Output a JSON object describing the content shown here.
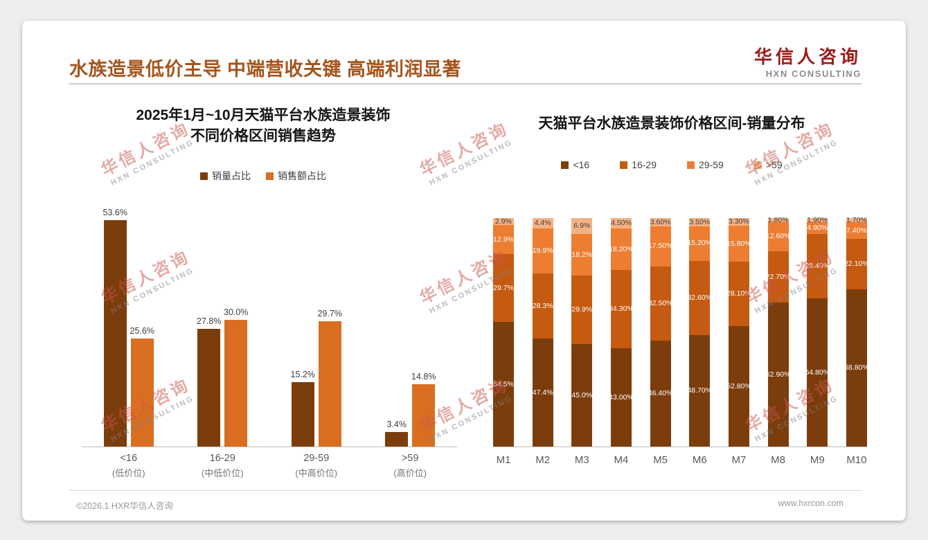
{
  "page": {
    "title": "水族造景低价主导 中端营收关键 高端利润显著",
    "logo": {
      "cn": "华信人咨询",
      "en": "HXN CONSULTING"
    },
    "watermark": {
      "cn": "华信人咨询",
      "en": "HXN CONSULTING"
    },
    "footer": {
      "copyright": "©2026.1 HXR华信人咨询",
      "website": "www.hxrcon.com"
    }
  },
  "colors": {
    "page_title": "#A4551C",
    "logo_red": "#9C1B1C",
    "dark_brown": "#7C3D0D",
    "orange": "#DA6E20",
    "stack_16_29": "#C55A11",
    "stack_29_59": "#ED7D31",
    "stack_gt59": "#F4B183"
  },
  "chart_data": [
    {
      "type": "bar",
      "title_lines": [
        "2025年1月~10月天猫平台水族造景装饰",
        "不同价格区间销售趋势"
      ],
      "categories": [
        "<16",
        "16-29",
        "29-59",
        ">59"
      ],
      "category_sublabels": [
        "(低价位)",
        "(中低价位)",
        "(中高价位)",
        "(高价位)"
      ],
      "series": [
        {
          "name": "销量占比",
          "color": "#7C3D0D",
          "values": [
            53.6,
            27.8,
            15.2,
            3.4
          ],
          "labels": [
            "53.6%",
            "27.8%",
            "15.2%",
            "3.4%"
          ]
        },
        {
          "name": "销售额占比",
          "color": "#DA6E20",
          "values": [
            25.6,
            30.0,
            29.7,
            14.8
          ],
          "labels": [
            "25.6%",
            "30.0%",
            "29.7%",
            "14.8%"
          ]
        }
      ],
      "ylim": [
        0,
        60
      ],
      "grid": false,
      "legend_position": "top"
    },
    {
      "type": "stacked-bar",
      "title": "天猫平台水族造景装饰价格区间-销量分布",
      "categories": [
        "M1",
        "M2",
        "M3",
        "M4",
        "M5",
        "M6",
        "M7",
        "M8",
        "M9",
        "M10"
      ],
      "series": [
        {
          "name": "<16",
          "color": "#7C3D0D",
          "label_color": "#FFFFFF",
          "values": [
            54.5,
            47.4,
            45.0,
            43.0,
            46.4,
            48.7,
            52.8,
            62.9,
            64.8,
            68.8
          ],
          "labels": [
            "54.5%",
            "47.4%",
            "45.0%",
            "43.00%",
            "46.40%",
            "48.70%",
            "52.80%",
            "62.90%",
            "64.80%",
            "68.80%"
          ]
        },
        {
          "name": "16-29",
          "color": "#C55A11",
          "label_color": "#FFFFFF",
          "values": [
            29.7,
            28.3,
            29.9,
            34.3,
            32.5,
            32.6,
            28.1,
            22.7,
            28.4,
            22.1
          ],
          "labels": [
            "29.7%",
            "28.3%",
            "29.9%",
            "34.30%",
            "32.50%",
            "32.60%",
            "28.10%",
            "22.70%",
            "28.40%",
            "22.10%"
          ]
        },
        {
          "name": "29-59",
          "color": "#ED7D31",
          "label_color": "#FFFFFF",
          "values": [
            12.9,
            19.9,
            18.2,
            18.2,
            17.5,
            15.2,
            15.8,
            12.6,
            4.9,
            7.4
          ],
          "labels": [
            "12.9%",
            "19.9%",
            "18.2%",
            "18.20%",
            "17.50%",
            "15.20%",
            "15.80%",
            "12.60%",
            "4.90%",
            "7.40%"
          ]
        },
        {
          "name": ">59",
          "color": "#F4B183",
          "label_color": "#404040",
          "values": [
            2.9,
            4.4,
            6.9,
            4.5,
            3.6,
            3.5,
            3.3,
            1.8,
            1.9,
            1.7
          ],
          "labels": [
            "2.9%",
            "4.4%",
            "6.9%",
            "4.50%",
            "3.60%",
            "3.50%",
            "3.30%",
            "1.80%",
            "1.90%",
            "1.70%"
          ]
        }
      ],
      "ylim": [
        0,
        100
      ],
      "grid": false,
      "legend_position": "top"
    }
  ]
}
